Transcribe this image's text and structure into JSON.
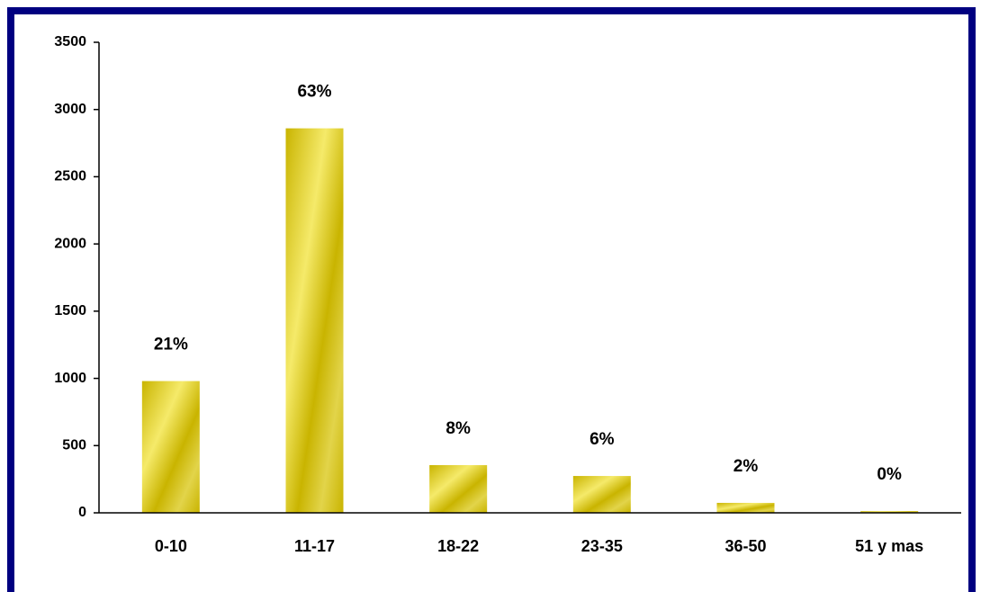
{
  "chart_data": {
    "type": "bar",
    "categories": [
      "0-10",
      "11-17",
      "18-22",
      "23-35",
      "36-50",
      "51 y mas"
    ],
    "values": [
      980,
      2860,
      355,
      274,
      74,
      13
    ],
    "percent_labels": [
      "21%",
      "63%",
      "8%",
      "6%",
      "2%",
      "0%"
    ],
    "color": "#c9b400",
    "ylim": [
      0,
      3500
    ],
    "yticks": [
      0,
      500,
      1000,
      1500,
      2000,
      2500,
      3000,
      3500
    ],
    "grid": false
  }
}
